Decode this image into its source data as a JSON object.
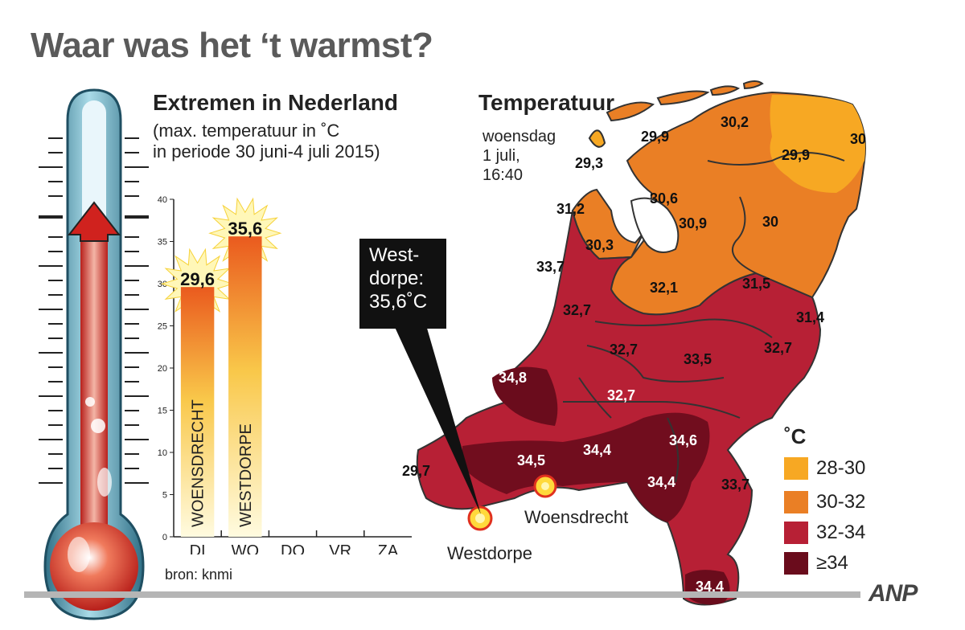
{
  "title": "Waar was het ‘t warmst?",
  "left_panel": {
    "heading": "Extremen in Nederland",
    "subtitle_line1": "(max. temperatuur in ˚C",
    "subtitle_line2": "in periode 30 juni-4 juli 2015)",
    "source": "bron: knmi"
  },
  "chart_data": {
    "type": "bar",
    "title": "Extremen in Nederland",
    "categories": [
      "DI",
      "WO",
      "DO",
      "VR",
      "ZA"
    ],
    "values": [
      29.6,
      35.6,
      null,
      null,
      null
    ],
    "value_labels": [
      "29,6",
      "35,6",
      "",
      "",
      ""
    ],
    "bar_station_labels": [
      "WOENSDRECHT",
      "WESTDORPE",
      "",
      "",
      ""
    ],
    "ylim": [
      0,
      40
    ],
    "yticks": [
      0,
      5,
      10,
      15,
      20,
      25,
      30,
      35,
      40
    ],
    "grid": false
  },
  "map_panel": {
    "heading": "Temperatuur",
    "timestamp_line1": "woensdag",
    "timestamp_line2": "1 juli,",
    "timestamp_line3": "16:40",
    "callout_line1": "West-",
    "callout_line2": "dorpe:",
    "callout_line3": "35,6˚C",
    "cities": {
      "westdorpe": "Westdorpe",
      "woensdrecht": "Woensdrecht"
    },
    "values": {
      "v01": "29,9",
      "v02": "30,2",
      "v03": "30",
      "v04": "29,9",
      "v05": "29,3",
      "v06": "31,2",
      "v07": "30,6",
      "v08": "30,9",
      "v09": "30",
      "v10": "30,3",
      "v11": "33,7",
      "v12": "32,1",
      "v13": "31,5",
      "v14": "32,7",
      "v15": "31,4",
      "v16": "32,7",
      "v17": "33,5",
      "v18": "32,7",
      "v19": "34,8",
      "v20": "32,7",
      "v21": "34,6",
      "v22": "34,4",
      "v23": "34,5",
      "v24": "29,7",
      "v25": "34,4",
      "v26": "33,7",
      "v27": "34,4"
    }
  },
  "legend": {
    "unit": "˚C",
    "items": [
      {
        "label": "28-30",
        "color": "#f7a823"
      },
      {
        "label": "30-32",
        "color": "#ea7f25"
      },
      {
        "label": "32-34",
        "color": "#b72035"
      },
      {
        "label": "≥34",
        "color": "#6a0c1c"
      }
    ]
  },
  "credit": "ANP"
}
